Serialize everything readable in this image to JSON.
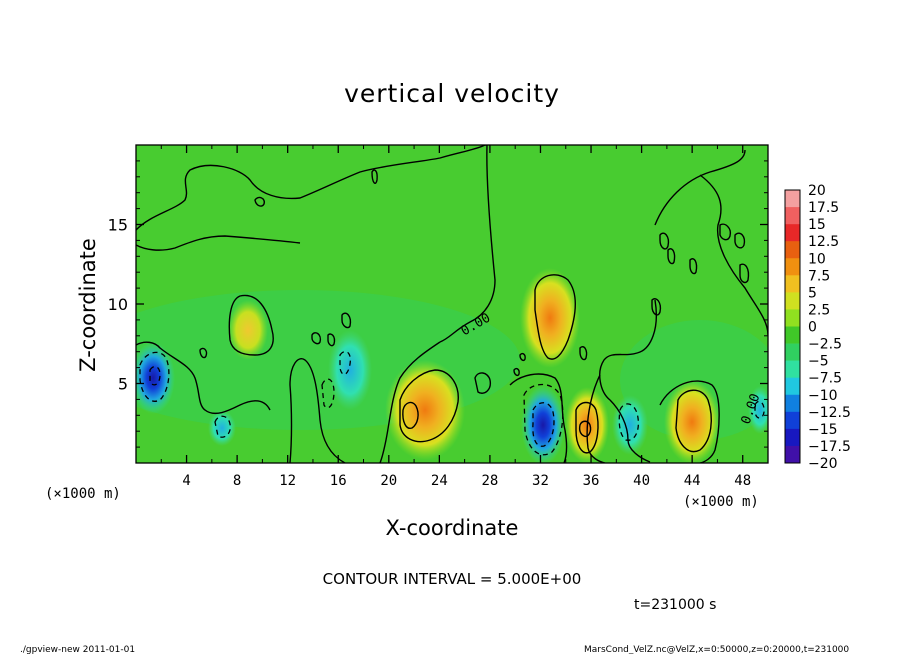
{
  "chart_data": {
    "type": "heatmap",
    "title": "vertical velocity",
    "xlabel": "X-coordinate",
    "ylabel": "Z-coordinate",
    "x_unit": "(×1000 m)",
    "y_unit": "(×1000 m)",
    "xlim": [
      0,
      50
    ],
    "ylim": [
      0,
      20
    ],
    "x_ticks": [
      4,
      8,
      12,
      16,
      20,
      24,
      28,
      32,
      36,
      40,
      44,
      48
    ],
    "y_ticks": [
      5,
      10,
      15
    ],
    "colorbar": {
      "levels": [
        20,
        17.5,
        15,
        12.5,
        10,
        7.5,
        5,
        2.5,
        0,
        -2.5,
        -5,
        -7.5,
        -10,
        -12.5,
        -15,
        -17.5,
        -20
      ],
      "colors": [
        "#f4a0a0",
        "#f06060",
        "#e82828",
        "#e86010",
        "#f09010",
        "#f0c020",
        "#d0e020",
        "#90e020",
        "#40c828",
        "#30d060",
        "#30e0a0",
        "#20c8e0",
        "#1080e0",
        "#1040d8",
        "#1818c0",
        "#4010a8",
        "#6818a0"
      ]
    },
    "contour_interval": "CONTOUR INTERVAL = 5.000E+00",
    "annotations": [
      "0.00",
      "0.00"
    ]
  },
  "footer": {
    "time": "t=231000 s",
    "left": "./gpview-new   2011-01-01",
    "right": "MarsCond_VelZ.nc@VelZ,x=0:50000,z=0:20000,t=231000"
  }
}
